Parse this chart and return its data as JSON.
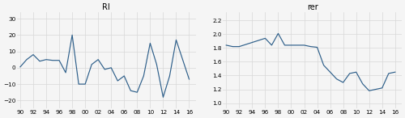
{
  "ri_title": "RI",
  "rer_title": "rer",
  "xtick_labels": [
    "90",
    "92",
    "94",
    "96",
    "98",
    "00",
    "02",
    "04",
    "06",
    "08",
    "10",
    "12",
    "14",
    "16"
  ],
  "xtick_positions": [
    0,
    2,
    4,
    6,
    8,
    10,
    12,
    14,
    16,
    18,
    20,
    22,
    24,
    26
  ],
  "ri_x": [
    0,
    1,
    2,
    3,
    4,
    5,
    6,
    7,
    8,
    9,
    10,
    11,
    12,
    13,
    14,
    15,
    16,
    17,
    18,
    19,
    20,
    21,
    22,
    23,
    24,
    25,
    26
  ],
  "ri_y": [
    0.5,
    5.0,
    8.0,
    4.0,
    5.0,
    4.5,
    4.5,
    -3.0,
    20.0,
    -10.0,
    -10.0,
    2.0,
    5.0,
    -1.0,
    0.0,
    -8.0,
    -5.0,
    -14.0,
    -15.0,
    -5.0,
    15.0,
    2.0,
    -18.0,
    -5.0,
    17.0,
    5.0,
    -7.0
  ],
  "rer_x": [
    0,
    1,
    2,
    3,
    4,
    5,
    6,
    7,
    8,
    9,
    10,
    11,
    12,
    13,
    14,
    15,
    16,
    17,
    18,
    19,
    20,
    21,
    22,
    23,
    24,
    25,
    26
  ],
  "rer_y": [
    1.84,
    1.82,
    1.82,
    1.85,
    1.88,
    1.91,
    1.94,
    1.84,
    2.01,
    1.84,
    1.84,
    1.84,
    1.84,
    1.82,
    1.81,
    1.55,
    1.45,
    1.35,
    1.3,
    1.43,
    1.45,
    1.28,
    1.18,
    1.2,
    1.22,
    1.43,
    1.45
  ],
  "ri_yticks": [
    -20,
    -10,
    0,
    10,
    20,
    30
  ],
  "ri_ylim": [
    -25,
    34
  ],
  "rer_yticks": [
    1.0,
    1.2,
    1.4,
    1.6,
    1.8,
    2.0,
    2.2
  ],
  "rer_ylim": [
    0.92,
    2.32
  ],
  "line_color": "#2e5f8a",
  "bg_color": "#f5f5f5",
  "grid_color": "#d8d8d8"
}
